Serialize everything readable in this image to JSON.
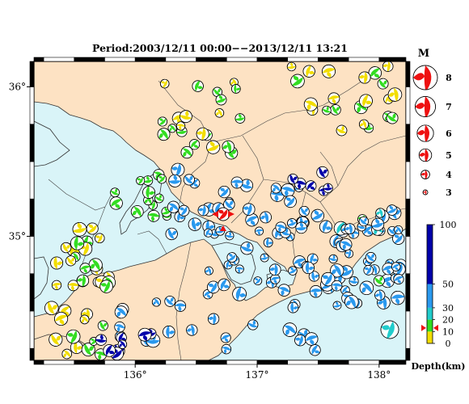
{
  "title": "Period:2003/12/11 00:00−−2013/12/11 13:21",
  "axes": {
    "x_ticks": [
      {
        "value": 136,
        "label": "136°"
      },
      {
        "value": 137,
        "label": "137°"
      },
      {
        "value": 138,
        "label": "138°"
      }
    ],
    "y_ticks": [
      {
        "value": 36,
        "label": "36°"
      },
      {
        "value": 35,
        "label": "35°"
      }
    ],
    "lon_range": [
      135.17,
      138.22
    ],
    "lat_range": [
      34.17,
      36.17
    ]
  },
  "magnitude_legend": {
    "title": "M",
    "items": [
      {
        "label": "8",
        "m": 8
      },
      {
        "label": "7",
        "m": 7
      },
      {
        "label": "6",
        "m": 6
      },
      {
        "label": "5",
        "m": 5
      },
      {
        "label": "4",
        "m": 4
      },
      {
        "label": "3",
        "m": 3
      }
    ],
    "color": "#ee1111"
  },
  "depth_scale": {
    "title": "Depth(km)",
    "ticks": [
      {
        "label": "100",
        "value": 100
      },
      {
        "label": "50",
        "value": 50
      },
      {
        "label": "30",
        "value": 30
      },
      {
        "label": "20",
        "value": 20
      },
      {
        "label": "10",
        "value": 10
      },
      {
        "label": "0",
        "value": 0
      }
    ],
    "bands": [
      {
        "from": 0,
        "to": 10,
        "color": "#f2dd00"
      },
      {
        "from": 10,
        "to": 20,
        "color": "#33dd22"
      },
      {
        "from": 20,
        "to": 30,
        "color": "#22cccc"
      },
      {
        "from": 30,
        "to": 50,
        "color": "#2a99ee"
      },
      {
        "from": 50,
        "to": 100,
        "color": "#0000aa"
      }
    ],
    "marker_depth": 13
  },
  "colors": {
    "sea": "#d9f4f8",
    "land": "#fde2c3",
    "red": "#ee1111"
  }
}
